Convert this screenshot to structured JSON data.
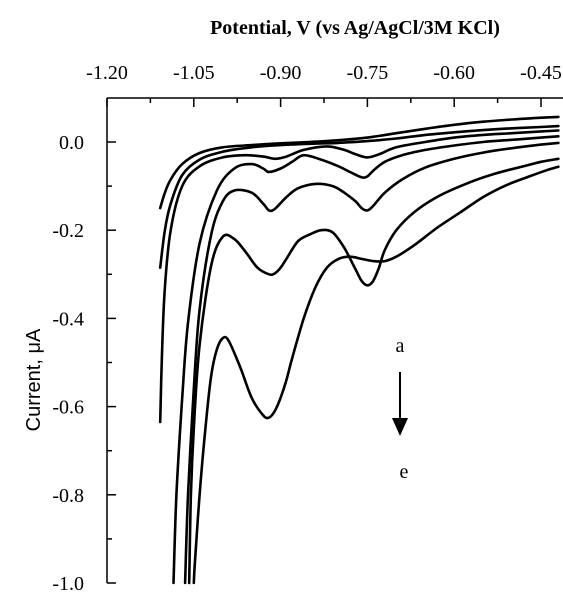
{
  "chart_data": {
    "type": "line",
    "title": "",
    "xlabel": "Potential, V (vs Ag/AgCl/3M KCl)",
    "ylabel": "Current, μA",
    "x_axis_position": "top",
    "x_reversed": false,
    "xlim": [
      -1.2,
      -0.42
    ],
    "ylim": [
      -1.0,
      0.1
    ],
    "x_ticks": [
      -1.2,
      -1.05,
      -0.9,
      -0.75,
      -0.6,
      -0.45
    ],
    "x_tick_labels": [
      "-1.20",
      "-1.05",
      "-0.90",
      "-0.75",
      "-0.60",
      "-0.45"
    ],
    "y_ticks": [
      0.0,
      -0.2,
      -0.4,
      -0.6,
      -0.8,
      -1.0
    ],
    "y_tick_labels": [
      "0.0",
      "-0.2",
      "-0.4",
      "-0.6",
      "-0.8",
      "-1.0"
    ],
    "grid": false,
    "legend": "none",
    "line_color": "#000000",
    "annotations": {
      "label_top": "a",
      "label_bottom": "e",
      "arrow": "down"
    },
    "series": [
      {
        "x": [
          -1.108,
          -1.1,
          -1.09,
          -1.07,
          -1.04,
          -1.0,
          -0.95,
          -0.9,
          -0.85,
          -0.8,
          -0.75,
          -0.7,
          -0.65,
          -0.6,
          -0.55,
          -0.5,
          -0.45,
          -0.42
        ],
        "y": [
          -0.15,
          -0.115,
          -0.085,
          -0.05,
          -0.025,
          -0.012,
          -0.007,
          -0.003,
          0.0,
          0.004,
          0.01,
          0.02,
          0.03,
          0.039,
          0.046,
          0.051,
          0.055,
          0.057
        ]
      },
      {
        "x": [
          -1.108,
          -1.1,
          -1.09,
          -1.07,
          -1.04,
          -1.0,
          -0.95,
          -0.9,
          -0.85,
          -0.8,
          -0.75,
          -0.7,
          -0.65,
          -0.6,
          -0.55,
          -0.5,
          -0.45,
          -0.42
        ],
        "y": [
          -0.285,
          -0.2,
          -0.14,
          -0.075,
          -0.04,
          -0.022,
          -0.012,
          -0.007,
          -0.004,
          -0.002,
          0.002,
          0.008,
          0.016,
          0.022,
          0.027,
          0.031,
          0.034,
          0.036
        ]
      },
      {
        "x": [
          -1.108,
          -1.105,
          -1.1,
          -1.09,
          -1.07,
          -1.04,
          -1.0,
          -0.96,
          -0.93,
          -0.91,
          -0.89,
          -0.86,
          -0.82,
          -0.79,
          -0.77,
          -0.75,
          -0.73,
          -0.7,
          -0.65,
          -0.6,
          -0.55,
          -0.5,
          -0.45,
          -0.42
        ],
        "y": [
          -0.635,
          -0.48,
          -0.33,
          -0.2,
          -0.1,
          -0.055,
          -0.035,
          -0.03,
          -0.033,
          -0.038,
          -0.033,
          -0.018,
          -0.01,
          -0.018,
          -0.028,
          -0.035,
          -0.028,
          -0.012,
          0.0,
          0.01,
          0.016,
          0.02,
          0.024,
          0.026
        ]
      },
      {
        "x": [
          -1.085,
          -1.08,
          -1.07,
          -1.06,
          -1.04,
          -1.01,
          -0.98,
          -0.95,
          -0.93,
          -0.92,
          -0.9,
          -0.88,
          -0.86,
          -0.83,
          -0.8,
          -0.78,
          -0.76,
          -0.75,
          -0.74,
          -0.72,
          -0.69,
          -0.65,
          -0.6,
          -0.55,
          -0.5,
          -0.45,
          -0.42
        ],
        "y": [
          -1.0,
          -0.8,
          -0.58,
          -0.41,
          -0.23,
          -0.11,
          -0.06,
          -0.05,
          -0.06,
          -0.068,
          -0.06,
          -0.045,
          -0.03,
          -0.04,
          -0.055,
          -0.068,
          -0.08,
          -0.078,
          -0.065,
          -0.045,
          -0.03,
          -0.018,
          -0.008,
          0.0,
          0.005,
          0.01,
          0.013
        ]
      },
      {
        "x": [
          -1.065,
          -1.06,
          -1.05,
          -1.04,
          -1.02,
          -1.0,
          -0.98,
          -0.95,
          -0.93,
          -0.92,
          -0.91,
          -0.89,
          -0.87,
          -0.84,
          -0.81,
          -0.79,
          -0.77,
          -0.76,
          -0.75,
          -0.74,
          -0.72,
          -0.69,
          -0.65,
          -0.6,
          -0.55,
          -0.5,
          -0.45,
          -0.42
        ],
        "y": [
          -1.0,
          -0.8,
          -0.56,
          -0.38,
          -0.21,
          -0.135,
          -0.11,
          -0.115,
          -0.14,
          -0.155,
          -0.152,
          -0.125,
          -0.105,
          -0.095,
          -0.1,
          -0.115,
          -0.135,
          -0.15,
          -0.155,
          -0.145,
          -0.115,
          -0.085,
          -0.058,
          -0.038,
          -0.024,
          -0.014,
          -0.006,
          -0.002
        ]
      },
      {
        "x": [
          -1.058,
          -1.055,
          -1.05,
          -1.04,
          -1.02,
          -1.0,
          -0.98,
          -0.96,
          -0.94,
          -0.92,
          -0.91,
          -0.9,
          -0.89,
          -0.87,
          -0.85,
          -0.83,
          -0.81,
          -0.79,
          -0.77,
          -0.76,
          -0.75,
          -0.74,
          -0.73,
          -0.72,
          -0.7,
          -0.67,
          -0.63,
          -0.58,
          -0.53,
          -0.48,
          -0.45,
          -0.42
        ],
        "y": [
          -1.0,
          -0.8,
          -0.65,
          -0.46,
          -0.28,
          -0.215,
          -0.22,
          -0.25,
          -0.285,
          -0.3,
          -0.298,
          -0.285,
          -0.265,
          -0.225,
          -0.21,
          -0.2,
          -0.205,
          -0.24,
          -0.29,
          -0.315,
          -0.325,
          -0.315,
          -0.285,
          -0.245,
          -0.2,
          -0.16,
          -0.125,
          -0.095,
          -0.072,
          -0.055,
          -0.045,
          -0.038
        ]
      },
      {
        "x": [
          -1.05,
          -1.048,
          -1.04,
          -1.03,
          -1.02,
          -1.01,
          -1.0,
          -0.99,
          -0.97,
          -0.95,
          -0.93,
          -0.92,
          -0.91,
          -0.9,
          -0.89,
          -0.88,
          -0.86,
          -0.84,
          -0.82,
          -0.8,
          -0.78,
          -0.76,
          -0.74,
          -0.72,
          -0.7,
          -0.67,
          -0.63,
          -0.59,
          -0.55,
          -0.51,
          -0.47,
          -0.44,
          -0.42
        ],
        "y": [
          -1.0,
          -0.95,
          -0.8,
          -0.65,
          -0.53,
          -0.47,
          -0.445,
          -0.45,
          -0.51,
          -0.58,
          -0.62,
          -0.625,
          -0.61,
          -0.58,
          -0.54,
          -0.49,
          -0.4,
          -0.33,
          -0.285,
          -0.265,
          -0.26,
          -0.265,
          -0.27,
          -0.27,
          -0.26,
          -0.235,
          -0.195,
          -0.16,
          -0.125,
          -0.098,
          -0.078,
          -0.064,
          -0.056
        ]
      }
    ]
  }
}
